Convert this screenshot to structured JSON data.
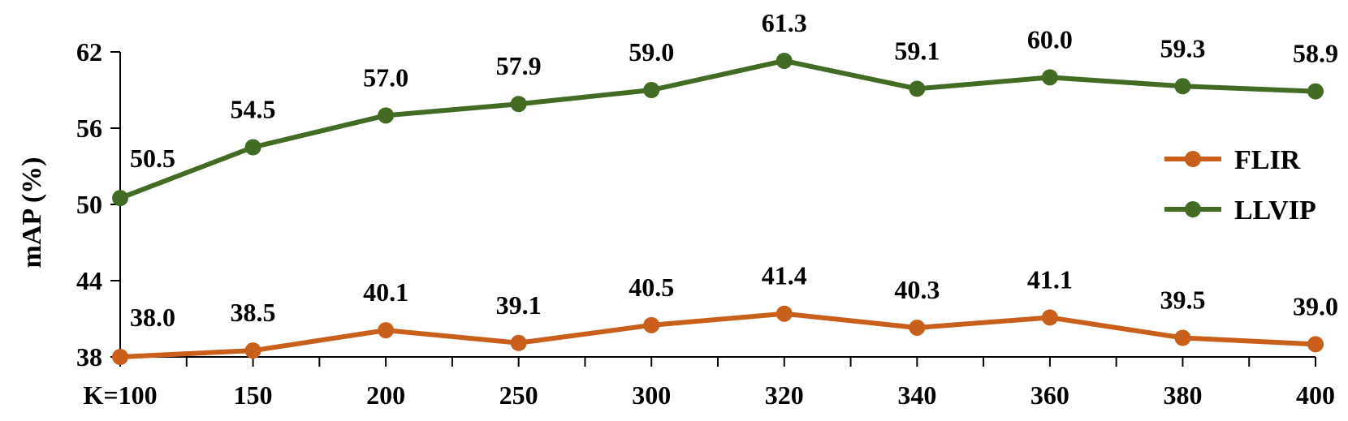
{
  "chart_data": {
    "type": "line",
    "title": "",
    "xlabel": "",
    "ylabel": "mAP (%)",
    "ylim": [
      38,
      62
    ],
    "yticks": [
      38,
      44,
      50,
      56,
      62
    ],
    "categories": [
      "K=100",
      "150",
      "200",
      "250",
      "300",
      "320",
      "340",
      "360",
      "380",
      "400"
    ],
    "series": [
      {
        "name": "FLIR",
        "color": "#c8601c",
        "values": [
          38.0,
          38.5,
          40.1,
          39.1,
          40.5,
          41.4,
          40.3,
          41.1,
          39.5,
          39.0
        ],
        "labels": [
          "38.0",
          "38.5",
          "40.1",
          "39.1",
          "40.5",
          "41.4",
          "40.3",
          "41.1",
          "39.5",
          "39.0"
        ]
      },
      {
        "name": "LLVIP",
        "color": "#436b24",
        "values": [
          50.5,
          54.5,
          57.0,
          57.9,
          59.0,
          61.3,
          59.1,
          60.0,
          59.3,
          58.9
        ],
        "labels": [
          "50.5",
          "54.5",
          "57.0",
          "57.9",
          "59.0",
          "61.3",
          "59.1",
          "60.0",
          "59.3",
          "58.9"
        ]
      }
    ],
    "legend_position": "right",
    "grid": false
  }
}
